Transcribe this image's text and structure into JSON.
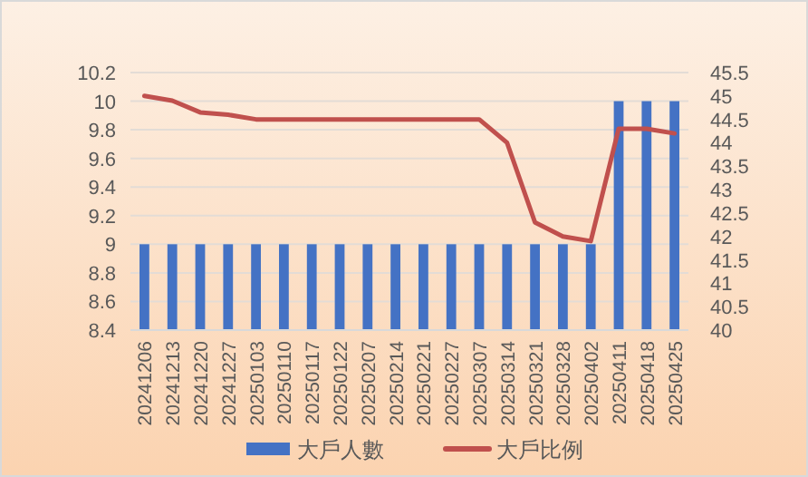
{
  "chart_data": {
    "type": "bar",
    "categories": [
      "20241206",
      "20241213",
      "20241220",
      "20241227",
      "20250103",
      "20250110",
      "20250117",
      "20250122",
      "20250207",
      "20250214",
      "20250221",
      "20250227",
      "20250307",
      "20250314",
      "20250321",
      "20250328",
      "20250402",
      "20250411",
      "20250418",
      "20250425"
    ],
    "series": [
      {
        "name": "大戶人數",
        "color": "#4472c4",
        "values": [
          9,
          9,
          9,
          9,
          9,
          9,
          9,
          9,
          9,
          9,
          9,
          9,
          9,
          9,
          9,
          9,
          9,
          10,
          10,
          10
        ]
      },
      {
        "name": "大戶比例",
        "type": "line",
        "axis": "y2",
        "color": "#c0504d",
        "values": [
          45.0,
          44.9,
          44.65,
          44.6,
          44.5,
          44.5,
          44.5,
          44.5,
          44.5,
          44.5,
          44.5,
          44.5,
          44.5,
          44.0,
          42.3,
          42.0,
          41.9,
          44.3,
          44.3,
          44.2
        ]
      }
    ],
    "ylim": [
      8.4,
      10.2
    ],
    "yticks": [
      8.4,
      8.6,
      8.8,
      9,
      9.2,
      9.4,
      9.6,
      9.8,
      10,
      10.2
    ],
    "y2lim": [
      40,
      45.5
    ],
    "y2ticks": [
      40,
      40.5,
      41,
      41.5,
      42,
      42.5,
      43,
      43.5,
      44,
      44.5,
      45,
      45.5
    ],
    "grid": "y",
    "legend": "bottom"
  }
}
